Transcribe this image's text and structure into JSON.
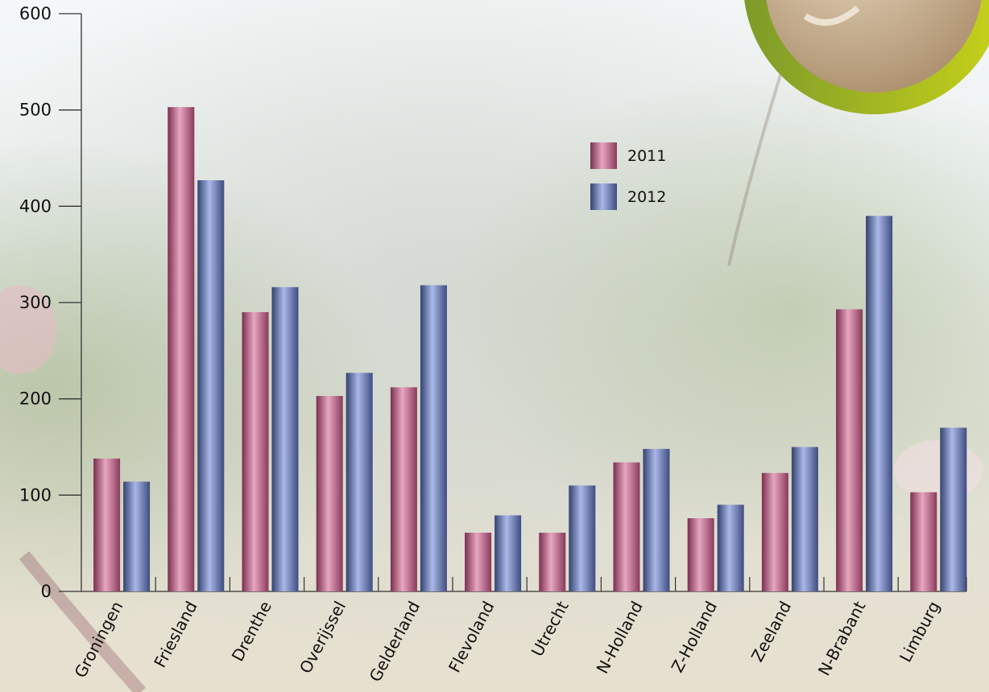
{
  "chart_data": {
    "type": "bar",
    "title": "",
    "xlabel": "",
    "ylabel": "",
    "ylim": [
      0,
      600
    ],
    "yticks": [
      0,
      100,
      200,
      300,
      400,
      500,
      600
    ],
    "yticks_text": [
      "0",
      "100",
      "200",
      "300",
      "400",
      "500",
      "600"
    ],
    "grid": false,
    "legend_position": "upper-center",
    "categories": [
      "Groningen",
      "Friesland",
      "Drenthe",
      "Overijssel",
      "Gelderland",
      "Flevoland",
      "Utrecht",
      "N-Holland",
      "Z-Holland",
      "Zeeland",
      "N-Brabant",
      "Limburg"
    ],
    "series": [
      {
        "name": "2011",
        "color": "#b5587e",
        "values": [
          138,
          503,
          290,
          203,
          212,
          61,
          61,
          134,
          76,
          123,
          293,
          103
        ]
      },
      {
        "name": "2012",
        "color": "#5a6aa8",
        "values": [
          114,
          427,
          316,
          227,
          318,
          79,
          110,
          148,
          90,
          150,
          390,
          170
        ]
      }
    ]
  }
}
